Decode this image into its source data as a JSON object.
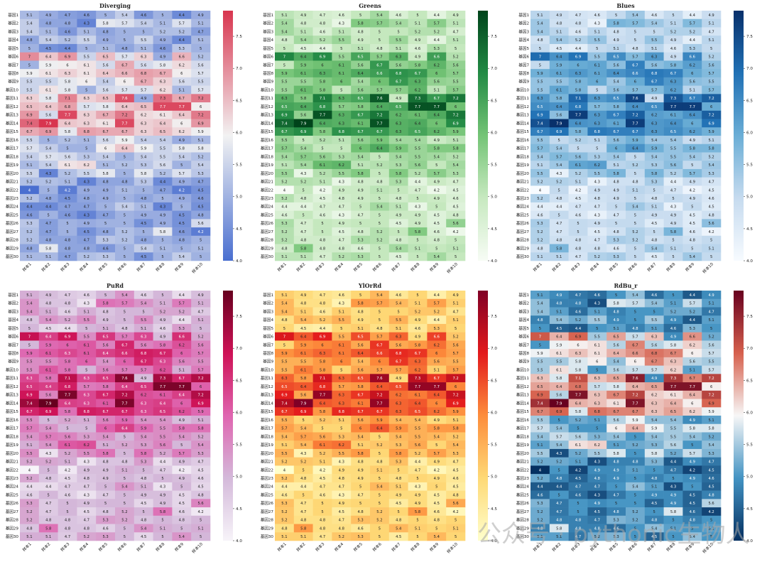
{
  "watermark": "公众号 · pythonic生物人",
  "colorbar_ticks": [
    4.0,
    4.5,
    5.0,
    5.5,
    6.0,
    6.5,
    7.0,
    7.5
  ],
  "panels": [
    {
      "title": "Diverging",
      "colormap": [
        "#4a6fd0",
        "#f2f2f2",
        "#d8354f"
      ]
    },
    {
      "title": "Greens",
      "colormap": [
        "#f7fcf5",
        "#c7e9c0",
        "#74c476",
        "#238b45",
        "#00441b"
      ]
    },
    {
      "title": "Blues",
      "colormap": [
        "#f7fbff",
        "#c6dbef",
        "#6baed6",
        "#2171b5",
        "#08306b"
      ]
    },
    {
      "title": "PuRd",
      "colormap": [
        "#f7f4f9",
        "#d4b9da",
        "#df65b0",
        "#ce1256",
        "#67001f"
      ]
    },
    {
      "title": "YlOrRd",
      "colormap": [
        "#ffffcc",
        "#fed976",
        "#fd8d3c",
        "#e31a1c",
        "#800026"
      ]
    },
    {
      "title": "RdBu_r",
      "colormap": [
        "#053061",
        "#4393c3",
        "#f7f7f7",
        "#d6604d",
        "#67001f"
      ]
    }
  ],
  "chart_data": {
    "type": "heatmap",
    "vmin": 4.0,
    "vmax": 7.9,
    "rows": [
      "基因1",
      "基因2",
      "基因3",
      "基因4",
      "基因5",
      "基因6",
      "基因7",
      "基因8",
      "基因9",
      "基因10",
      "基因11",
      "基因12",
      "基因13",
      "基因14",
      "基因15",
      "基因16",
      "基因17",
      "基因18",
      "基因19",
      "基因20",
      "基因21",
      "基因22",
      "基因23",
      "基因24",
      "基因25",
      "基因26",
      "基因27",
      "基因28",
      "基因29",
      "基因30"
    ],
    "columns": [
      "样本1",
      "样本2",
      "样本3",
      "样本4",
      "样本5",
      "样本6",
      "样本7",
      "样本8",
      "样本9",
      "样本10"
    ],
    "values": [
      [
        5.1,
        4.9,
        4.7,
        4.6,
        5,
        5.4,
        4.6,
        5,
        4.4,
        4.9
      ],
      [
        5.4,
        4.8,
        4.8,
        4.3,
        5.8,
        5.7,
        5.4,
        5.1,
        5.7,
        5.1
      ],
      [
        5.4,
        5.1,
        4.6,
        5.1,
        4.8,
        5,
        5,
        5.2,
        5.2,
        4.7
      ],
      [
        4.8,
        5.4,
        5.2,
        5.5,
        4.9,
        5,
        5.5,
        4.9,
        4.4,
        5.1
      ],
      [
        5,
        4.5,
        4.4,
        5,
        5.1,
        4.8,
        5.1,
        4.6,
        5.3,
        5
      ],
      [
        7,
        6.4,
        6.9,
        5.5,
        6.5,
        5.7,
        6.3,
        4.9,
        6.6,
        5.2
      ],
      [
        5,
        5.9,
        6,
        6.1,
        5.6,
        6.7,
        5.6,
        5.8,
        6.2,
        5.6
      ],
      [
        5.9,
        6.1,
        6.3,
        6.1,
        6.4,
        6.6,
        6.8,
        6.7,
        6,
        5.7
      ],
      [
        5.5,
        5.5,
        5.8,
        6,
        5.4,
        6,
        6.7,
        6.3,
        5.6,
        5.5
      ],
      [
        5.5,
        6.1,
        5.8,
        5,
        5.6,
        5.7,
        5.7,
        6.2,
        5.1,
        5.7
      ],
      [
        6.3,
        5.8,
        7.1,
        6.3,
        6.5,
        7.6,
        4.9,
        7.3,
        6.7,
        7.2
      ],
      [
        6.5,
        6.4,
        6.8,
        5.7,
        5.8,
        6.4,
        6.5,
        7.7,
        7.7,
        6
      ],
      [
        6.9,
        5.6,
        7.7,
        6.3,
        6.7,
        7.2,
        6.2,
        6.1,
        6.4,
        7.2
      ],
      [
        7.4,
        7.9,
        6.4,
        6.3,
        6.1,
        7.7,
        6.3,
        6.4,
        6,
        6.9
      ],
      [
        6.7,
        6.9,
        5.8,
        6.8,
        6.7,
        6.7,
        6.3,
        6.5,
        6.2,
        5.9
      ],
      [
        5.5,
        5,
        5.2,
        5.1,
        5.6,
        5.9,
        5.4,
        5.4,
        4.9,
        5.1
      ],
      [
        5.7,
        5.4,
        5,
        5,
        6,
        6.4,
        5.9,
        5.5,
        5.8,
        5.8
      ],
      [
        5.4,
        5.7,
        5.6,
        5.3,
        5.4,
        5,
        5.4,
        5.5,
        5.4,
        5.2
      ],
      [
        5.1,
        5.4,
        6.1,
        6.2,
        5.1,
        5.2,
        5.3,
        5.6,
        5,
        5.4
      ],
      [
        5.5,
        4.3,
        5.2,
        5.5,
        5.8,
        5,
        5.8,
        5.2,
        5.7,
        5.3
      ],
      [
        5.2,
        5.2,
        5.1,
        4.3,
        4.8,
        4.8,
        5.3,
        4.4,
        4.9,
        4.7
      ],
      [
        4,
        5,
        4.2,
        4.9,
        4.9,
        5.1,
        5,
        4.7,
        4.2,
        4.5
      ],
      [
        5.2,
        4.8,
        4.5,
        4.8,
        4.9,
        5,
        4.8,
        5,
        4.9,
        4.6
      ],
      [
        4.4,
        4.4,
        4.7,
        4.7,
        5,
        5.4,
        5.1,
        4.3,
        5,
        4.5
      ],
      [
        4.6,
        5,
        4.6,
        4.3,
        4.7,
        5,
        4.9,
        4.9,
        4.5,
        4.8
      ],
      [
        5.3,
        4.7,
        5,
        4.9,
        5,
        5,
        4.5,
        4.9,
        4.5,
        5.6
      ],
      [
        5.2,
        4.7,
        5,
        4.5,
        4.8,
        5.2,
        5,
        5.8,
        4.6,
        4.2
      ],
      [
        5.2,
        4.8,
        4.8,
        4.7,
        5.3,
        5.2,
        4.8,
        5,
        4.8,
        5
      ],
      [
        4.8,
        5.8,
        4.8,
        4.8,
        4.6,
        5,
        5.4,
        5.1,
        5,
        5.1
      ],
      [
        5.1,
        5.1,
        4.7,
        5.2,
        5.3,
        5,
        4.5,
        5,
        5.4,
        5
      ]
    ]
  }
}
